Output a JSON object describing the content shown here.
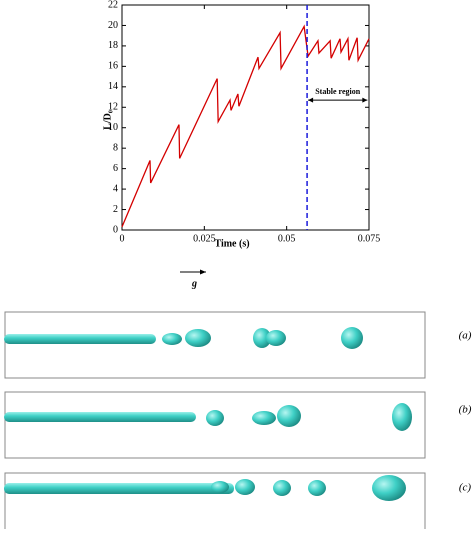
{
  "chart_data": {
    "type": "line",
    "xlabel": "Time (s)",
    "ylabel": "L/D₀",
    "x": [
      0,
      0.0085,
      0.0087,
      0.0173,
      0.0175,
      0.0289,
      0.0292,
      0.0328,
      0.0331,
      0.0352,
      0.0355,
      0.0413,
      0.0416,
      0.048,
      0.0483,
      0.0553,
      0.0565,
      0.0595,
      0.0598,
      0.0632,
      0.0635,
      0.0662,
      0.0665,
      0.0686,
      0.0689,
      0.0714,
      0.0717,
      0.075
    ],
    "series": [
      {
        "color": "#d40000",
        "values": [
          0.3,
          6.8,
          4.6,
          10.3,
          7.0,
          14.8,
          10.6,
          12.7,
          11.7,
          13.3,
          12.1,
          16.9,
          15.8,
          19.3,
          15.8,
          19.9,
          17.0,
          18.5,
          17.3,
          18.5,
          16.8,
          18.7,
          17.4,
          18.7,
          16.6,
          18.8,
          16.6,
          18.7
        ]
      }
    ],
    "xlim": [
      0,
      0.075
    ],
    "xticks": [
      0,
      0.025,
      0.05,
      0.075
    ],
    "ylim": [
      0,
      22
    ],
    "yticks": [
      0,
      2,
      4,
      6,
      8,
      10,
      12,
      14,
      16,
      18,
      20,
      22
    ],
    "vline": {
      "x": 0.0562,
      "color": "#1a1adb"
    },
    "annotation": {
      "text": "Stable region",
      "x": [
        0.0562,
        0.0748
      ],
      "y": 12.7
    }
  },
  "figure": {
    "gravity_label": "g",
    "panels": [
      "(a)",
      "(b)",
      "(c)"
    ]
  }
}
